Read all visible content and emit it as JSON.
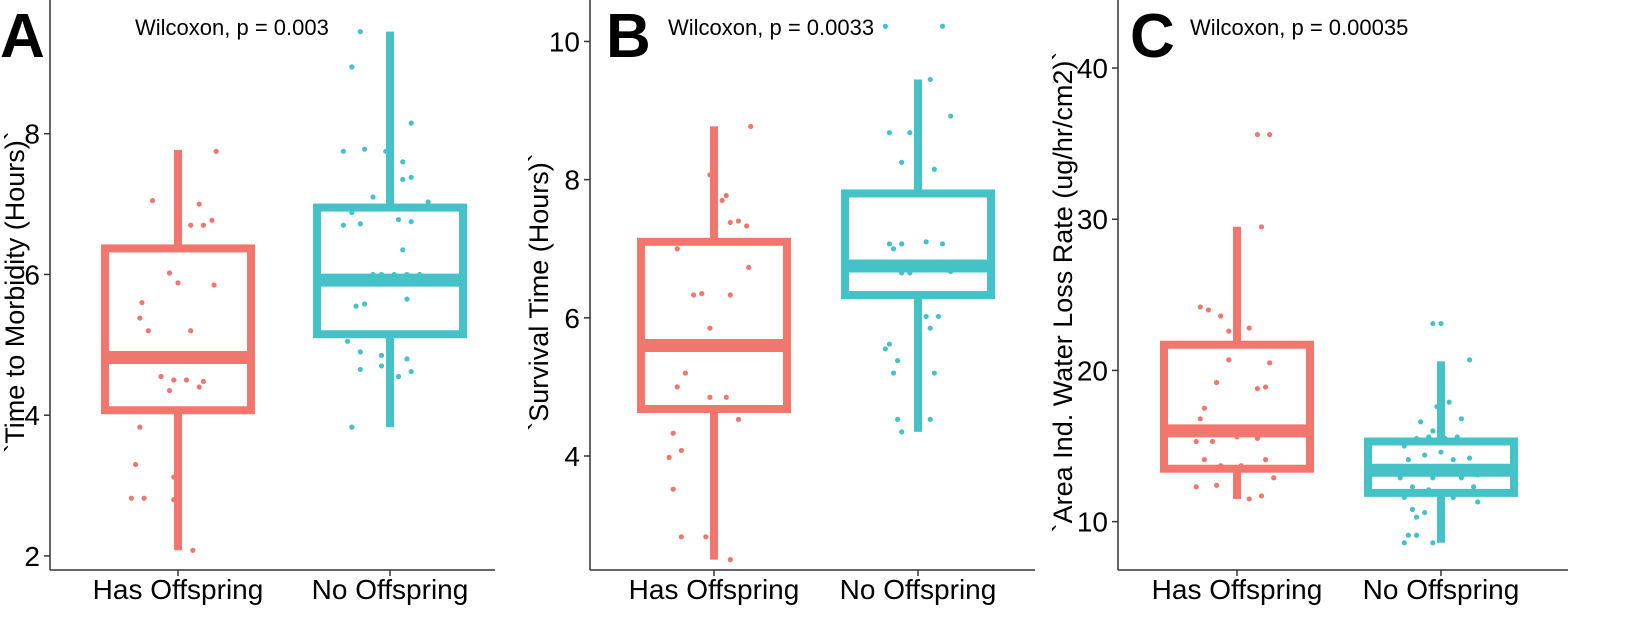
{
  "colors": {
    "has_offspring": "#F0766E",
    "no_offspring": "#45C2C8",
    "axis": "#333333"
  },
  "chart_data": [
    {
      "type": "box",
      "panel": "A",
      "annotation": "Wilcoxon, p = 0.003",
      "ylabel": "`Time to Morbidity (Hours)`",
      "categories": [
        "Has Offspring",
        "No Offspring"
      ],
      "yticks": [
        "2",
        "4",
        "6",
        "8"
      ],
      "ylim": [
        1.8,
        9.9
      ],
      "boxes": [
        {
          "category": "Has Offspring",
          "min": 2.08,
          "q1": 4.07,
          "median": 4.82,
          "q3": 6.37,
          "max": 7.77
        },
        {
          "category": "No Offspring",
          "min": 3.83,
          "q1": 5.15,
          "median": 5.92,
          "q3": 6.95,
          "max": 9.45
        }
      ],
      "points": [
        [
          [
            0.88,
            7.05
          ],
          [
            1.18,
            7.75
          ],
          [
            1.1,
            7.0
          ],
          [
            1.16,
            6.77
          ],
          [
            1.06,
            6.7
          ],
          [
            1.12,
            6.7
          ],
          [
            0.96,
            6.02
          ],
          [
            1.0,
            5.88
          ],
          [
            1.17,
            5.85
          ],
          [
            0.83,
            5.6
          ],
          [
            0.82,
            5.38
          ],
          [
            0.86,
            5.2
          ],
          [
            1.06,
            5.2
          ],
          [
            0.92,
            4.55
          ],
          [
            0.98,
            4.5
          ],
          [
            1.04,
            4.5
          ],
          [
            1.12,
            4.48
          ],
          [
            0.96,
            4.35
          ],
          [
            1.1,
            4.4
          ],
          [
            0.82,
            3.83
          ],
          [
            0.8,
            3.3
          ],
          [
            0.98,
            3.12
          ],
          [
            0.78,
            2.82
          ],
          [
            0.84,
            2.82
          ],
          [
            0.98,
            2.8
          ],
          [
            1.07,
            2.08
          ]
        ],
        [
          [
            1.86,
            9.45
          ],
          [
            1.82,
            8.95
          ],
          [
            1.88,
            7.78
          ],
          [
            2.1,
            8.15
          ],
          [
            1.78,
            7.75
          ],
          [
            1.98,
            7.75
          ],
          [
            2.06,
            7.6
          ],
          [
            2.06,
            7.35
          ],
          [
            2.1,
            7.38
          ],
          [
            1.92,
            7.1
          ],
          [
            2.18,
            7.03
          ],
          [
            1.82,
            6.88
          ],
          [
            1.78,
            6.7
          ],
          [
            1.86,
            6.72
          ],
          [
            2.04,
            6.78
          ],
          [
            2.1,
            6.75
          ],
          [
            2.06,
            6.35
          ],
          [
            1.92,
            6.0
          ],
          [
            1.96,
            6.0
          ],
          [
            2.02,
            6.0
          ],
          [
            2.08,
            6.0
          ],
          [
            2.14,
            6.0
          ],
          [
            1.84,
            5.55
          ],
          [
            1.88,
            5.58
          ],
          [
            2.08,
            5.65
          ],
          [
            1.76,
            5.15
          ],
          [
            1.8,
            5.05
          ],
          [
            1.86,
            4.9
          ],
          [
            1.96,
            4.85
          ],
          [
            2.08,
            4.8
          ],
          [
            1.86,
            4.65
          ],
          [
            1.96,
            4.7
          ],
          [
            2.04,
            4.55
          ],
          [
            2.1,
            4.62
          ],
          [
            1.82,
            3.83
          ]
        ]
      ]
    },
    {
      "type": "box",
      "panel": "B",
      "annotation": "Wilcoxon, p = 0.0033",
      "ylabel": "`Survival Time (Hours)`",
      "categories": [
        "Has Offspring",
        "No Offspring"
      ],
      "yticks": [
        "4",
        "6",
        "8",
        "10"
      ],
      "ylim": [
        2.35,
        10.6
      ],
      "boxes": [
        {
          "category": "Has Offspring",
          "min": 2.5,
          "q1": 4.68,
          "median": 5.6,
          "q3": 7.1,
          "max": 8.77
        },
        {
          "category": "No Offspring",
          "min": 4.35,
          "q1": 6.33,
          "median": 6.75,
          "q3": 7.8,
          "max": 9.45
        }
      ],
      "points": [
        [
          [
            1.18,
            8.77
          ],
          [
            0.98,
            8.07
          ],
          [
            1.06,
            7.77
          ],
          [
            1.04,
            7.7
          ],
          [
            1.12,
            7.4
          ],
          [
            1.16,
            7.33
          ],
          [
            1.08,
            7.38
          ],
          [
            0.82,
            7.0
          ],
          [
            0.9,
            6.33
          ],
          [
            0.94,
            6.35
          ],
          [
            1.08,
            6.33
          ],
          [
            1.17,
            6.73
          ],
          [
            0.98,
            5.85
          ],
          [
            0.94,
            5.58
          ],
          [
            0.86,
            5.2
          ],
          [
            0.82,
            5.0
          ],
          [
            0.98,
            4.85
          ],
          [
            1.06,
            4.85
          ],
          [
            1.12,
            4.53
          ],
          [
            0.8,
            4.33
          ],
          [
            0.84,
            4.08
          ],
          [
            0.78,
            3.98
          ],
          [
            0.8,
            3.52
          ],
          [
            0.84,
            2.83
          ],
          [
            0.96,
            2.83
          ],
          [
            1.08,
            2.5
          ]
        ],
        [
          [
            1.84,
            10.22
          ],
          [
            2.12,
            10.22
          ],
          [
            2.06,
            9.45
          ],
          [
            2.16,
            8.92
          ],
          [
            1.86,
            8.68
          ],
          [
            1.96,
            8.68
          ],
          [
            2.0,
            8.78
          ],
          [
            2.0,
            8.6
          ],
          [
            1.92,
            8.25
          ],
          [
            2.08,
            8.15
          ],
          [
            1.86,
            7.07
          ],
          [
            1.92,
            7.07
          ],
          [
            2.04,
            7.1
          ],
          [
            2.12,
            7.07
          ],
          [
            1.88,
            7.0
          ],
          [
            2.06,
            6.75
          ],
          [
            2.16,
            6.67
          ],
          [
            1.92,
            6.65
          ],
          [
            1.96,
            6.65
          ],
          [
            2.04,
            6.02
          ],
          [
            2.06,
            5.85
          ],
          [
            2.1,
            6.02
          ],
          [
            1.86,
            5.62
          ],
          [
            1.84,
            5.55
          ],
          [
            1.9,
            5.38
          ],
          [
            1.88,
            5.2
          ],
          [
            2.08,
            5.2
          ],
          [
            1.9,
            4.53
          ],
          [
            2.06,
            4.53
          ],
          [
            1.92,
            4.35
          ]
        ]
      ]
    },
    {
      "type": "box",
      "panel": "C",
      "annotation": "Wilcoxon, p = 0.00035",
      "ylabel": "`Area Ind. Water Loss Rate (ug/hr/cm2)`",
      "categories": [
        "Has Offspring",
        "No Offspring"
      ],
      "yticks": [
        "10",
        "20",
        "30",
        "40"
      ],
      "ylim": [
        6.8,
        44.5
      ],
      "boxes": [
        {
          "category": "Has Offspring",
          "min": 11.5,
          "q1": 13.5,
          "median": 16.0,
          "q3": 21.7,
          "max": 29.5
        },
        {
          "category": "No Offspring",
          "min": 8.6,
          "q1": 11.9,
          "median": 13.4,
          "q3": 15.3,
          "max": 20.6
        }
      ],
      "points": [
        [
          [
            1.1,
            35.6
          ],
          [
            1.16,
            35.6
          ],
          [
            1.12,
            29.5
          ],
          [
            0.82,
            24.2
          ],
          [
            0.86,
            24.0
          ],
          [
            0.92,
            23.6
          ],
          [
            0.96,
            22.6
          ],
          [
            1.0,
            23.0
          ],
          [
            1.06,
            22.8
          ],
          [
            0.96,
            20.7
          ],
          [
            1.16,
            20.5
          ],
          [
            0.9,
            19.2
          ],
          [
            1.1,
            18.8
          ],
          [
            1.14,
            18.9
          ],
          [
            0.84,
            17.5
          ],
          [
            0.82,
            16.8
          ],
          [
            0.86,
            16.1
          ],
          [
            0.8,
            15.3
          ],
          [
            0.88,
            15.3
          ],
          [
            1.0,
            15.6
          ],
          [
            1.1,
            15.5
          ],
          [
            0.84,
            14.1
          ],
          [
            1.14,
            14.1
          ],
          [
            0.92,
            13.7
          ],
          [
            1.02,
            13.7
          ],
          [
            1.12,
            13.4
          ],
          [
            1.18,
            12.9
          ],
          [
            0.8,
            12.3
          ],
          [
            0.9,
            12.4
          ],
          [
            1.06,
            11.5
          ],
          [
            1.12,
            11.7
          ]
        ],
        [
          [
            1.96,
            23.1
          ],
          [
            2.0,
            23.1
          ],
          [
            2.14,
            20.7
          ],
          [
            1.98,
            17.6
          ],
          [
            2.04,
            17.9
          ],
          [
            1.9,
            16.6
          ],
          [
            1.96,
            16.0
          ],
          [
            2.1,
            16.8
          ],
          [
            1.88,
            15.5
          ],
          [
            1.94,
            15.6
          ],
          [
            2.02,
            15.5
          ],
          [
            2.08,
            15.6
          ],
          [
            2.16,
            15.3
          ],
          [
            1.82,
            15.0
          ],
          [
            2.0,
            14.6
          ],
          [
            1.84,
            14.1
          ],
          [
            1.92,
            14.4
          ],
          [
            2.06,
            14.1
          ],
          [
            2.14,
            14.2
          ],
          [
            1.88,
            13.6
          ],
          [
            2.02,
            13.4
          ],
          [
            1.8,
            12.9
          ],
          [
            1.96,
            12.9
          ],
          [
            2.1,
            12.9
          ],
          [
            2.18,
            13.1
          ],
          [
            1.86,
            12.3
          ],
          [
            1.94,
            12.1
          ],
          [
            2.16,
            12.3
          ],
          [
            1.82,
            11.6
          ],
          [
            2.06,
            11.6
          ],
          [
            2.18,
            11.3
          ],
          [
            1.86,
            10.8
          ],
          [
            2.0,
            10.8
          ],
          [
            1.88,
            10.3
          ],
          [
            1.92,
            10.6
          ],
          [
            1.84,
            9.1
          ],
          [
            1.88,
            9.1
          ],
          [
            1.82,
            8.6
          ],
          [
            1.96,
            8.6
          ]
        ]
      ]
    }
  ]
}
